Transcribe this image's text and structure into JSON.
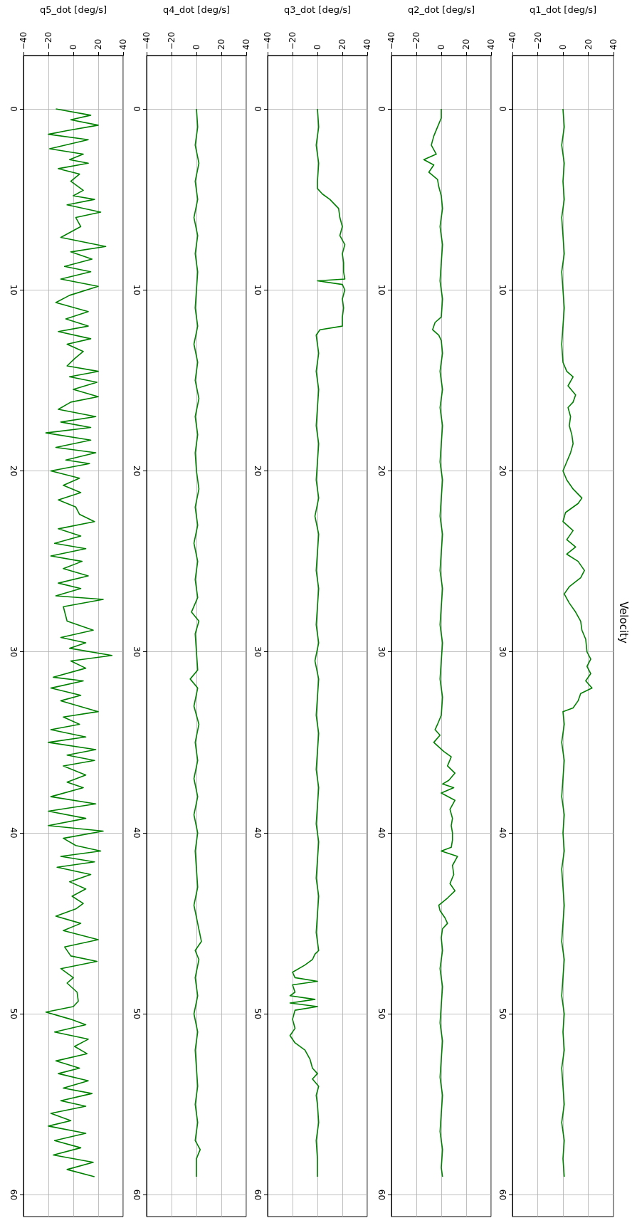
{
  "chart_data": [
    {
      "type": "line",
      "xlabel": "q5_dot [deg/s]",
      "color": "#008000",
      "grid": true,
      "marker": "none",
      "line_style": "solid",
      "xlim": [
        -40,
        40
      ],
      "xticks": [
        -40,
        -20,
        0,
        20,
        40
      ],
      "ylim": [
        61.2,
        -2.95
      ],
      "yticks": [
        0,
        10,
        20,
        30,
        40,
        50,
        60
      ],
      "x": [
        -14,
        14,
        -2,
        20,
        -5,
        -20,
        12,
        -19,
        8,
        -3,
        12,
        -12,
        5,
        -2,
        8,
        0,
        17,
        -5,
        22,
        2,
        6,
        -10,
        26,
        -2,
        15,
        -7,
        14,
        -10,
        20,
        -3,
        -14,
        12,
        -6,
        12,
        -12,
        14,
        -5,
        8,
        1,
        -5,
        20,
        -3,
        19,
        0,
        20,
        -2,
        -12,
        18,
        -10,
        14,
        -22,
        14,
        -14,
        18,
        -6,
        13,
        -18,
        5,
        -8,
        6,
        -12,
        2,
        5,
        17,
        -12,
        6,
        -15,
        10,
        -18,
        7,
        -8,
        12,
        -12,
        6,
        -14,
        24,
        -8,
        -5,
        16,
        -10,
        10,
        -3,
        31,
        -2,
        10,
        -16,
        8,
        -18,
        6,
        -10,
        20,
        -8,
        5,
        -18,
        10,
        -20,
        18,
        -5,
        17,
        -8,
        10,
        -5,
        8,
        -18,
        18,
        -20,
        10,
        -20,
        24,
        -8,
        2,
        22,
        -10,
        17,
        -13,
        14,
        -3,
        10,
        -1,
        8,
        2,
        -14,
        6,
        -8,
        20,
        -7,
        -2,
        19,
        -10,
        0,
        -5,
        3,
        4,
        0,
        -22,
        -2,
        10,
        -15,
        12,
        1,
        11,
        -14,
        5,
        -12,
        12,
        -8,
        15,
        -10,
        10,
        -18,
        -2,
        -20,
        10,
        -15,
        6,
        -16,
        16,
        -5,
        17
      ],
      "values": [
        0,
        0.35,
        0.6,
        0.9,
        1.2,
        1.4,
        1.7,
        2.2,
        2.5,
        2.8,
        3,
        3.3,
        3.6,
        4,
        4.5,
        4.8,
        5,
        5.3,
        5.7,
        6,
        6.5,
        7.1,
        7.6,
        7.9,
        8.3,
        8.7,
        9,
        9.4,
        9.8,
        10.3,
        10.7,
        11.2,
        11.6,
        12,
        12.3,
        12.7,
        13,
        13.4,
        13.8,
        14.2,
        14.5,
        14.8,
        15.1,
        15.5,
        15.9,
        16.2,
        16.6,
        17,
        17.3,
        17.6,
        17.9,
        18.3,
        18.7,
        19,
        19.4,
        19.6,
        20,
        20.4,
        20.8,
        21.2,
        21.6,
        22,
        22.4,
        22.8,
        23.2,
        23.6,
        24,
        24.3,
        24.7,
        25,
        25.4,
        25.8,
        26.2,
        26.5,
        26.9,
        27.1,
        27.5,
        28.3,
        28.8,
        29.2,
        29.5,
        29.8,
        30.2,
        30.5,
        30.9,
        31.4,
        31.6,
        32,
        32.4,
        32.7,
        33.3,
        33.6,
        34,
        34.3,
        34.7,
        35,
        35.4,
        35.7,
        36,
        36.3,
        36.8,
        37.2,
        37.5,
        38,
        38.4,
        38.8,
        39.2,
        39.6,
        39.9,
        40.3,
        40.7,
        41,
        41.3,
        41.6,
        41.9,
        42.3,
        42.7,
        43.1,
        43.5,
        43.9,
        44.2,
        44.6,
        45,
        45.4,
        45.9,
        46.3,
        46.8,
        47.1,
        47.5,
        48,
        48.3,
        48.8,
        49.3,
        49.6,
        49.9,
        50.3,
        50.6,
        51,
        51.4,
        51.8,
        52.2,
        52.6,
        53,
        53.3,
        53.7,
        54.1,
        54.4,
        54.8,
        55.1,
        55.5,
        55.9,
        56.2,
        56.6,
        57,
        57.4,
        57.8,
        58.2,
        58.6,
        59
      ]
    },
    {
      "type": "line",
      "xlabel": "q4_dot [deg/s]",
      "color": "#008000",
      "grid": true,
      "marker": "none",
      "line_style": "solid",
      "xlim": [
        -40,
        40
      ],
      "xticks": [
        -40,
        -20,
        0,
        20,
        40
      ],
      "ylim": [
        61.2,
        -2.95
      ],
      "yticks": [
        0,
        10,
        20,
        30,
        40,
        50,
        60
      ],
      "x": [
        0,
        1,
        -1,
        2,
        -1,
        1,
        -2,
        1,
        -1,
        1,
        0,
        -1,
        1,
        -2,
        1,
        -1,
        2,
        -1,
        1,
        -1,
        0,
        2,
        -1,
        1,
        -2,
        1,
        -1,
        1,
        -4,
        2,
        -1,
        0,
        1,
        -5,
        1,
        -2,
        2,
        -1,
        1,
        -2,
        1,
        -2,
        1,
        -1,
        0,
        1,
        -2,
        1,
        4,
        -1,
        2,
        -1,
        1,
        -2,
        1,
        -1,
        0,
        1,
        -1,
        1,
        -1,
        3,
        0,
        0
      ],
      "values": [
        0,
        1,
        2,
        3,
        4,
        5,
        6,
        7,
        8,
        9,
        10,
        11,
        12,
        13,
        14,
        15,
        16,
        17,
        18,
        19,
        20,
        21,
        22,
        23,
        24,
        25,
        26,
        27,
        27.8,
        28.3,
        29,
        30,
        31,
        31.5,
        32,
        33,
        34,
        35,
        36,
        37,
        38,
        39,
        40,
        41,
        42,
        43,
        44,
        45,
        46,
        46.5,
        47,
        48,
        49,
        50,
        51,
        52,
        53,
        54,
        55,
        56,
        57,
        57.5,
        58,
        59
      ]
    },
    {
      "type": "line",
      "xlabel": "q3_dot [deg/s]",
      "color": "#008000",
      "grid": true,
      "marker": "none",
      "line_style": "solid",
      "xlim": [
        -40,
        40
      ],
      "xticks": [
        -40,
        -20,
        0,
        20,
        40
      ],
      "ylim": [
        61.2,
        -2.95
      ],
      "yticks": [
        0,
        10,
        20,
        30,
        40,
        50,
        60
      ],
      "x": [
        0,
        1,
        -1,
        1,
        0,
        0,
        4,
        10,
        17,
        18,
        20,
        18,
        22,
        20,
        21,
        21,
        22,
        0,
        20,
        22,
        20,
        21,
        20,
        20,
        2,
        -1,
        1,
        -1,
        1,
        0,
        -1,
        1,
        0,
        -1,
        1,
        -2,
        1,
        0,
        -1,
        1,
        0,
        -1,
        1,
        -2,
        1,
        0,
        -1,
        1,
        0,
        -1,
        1,
        0,
        -1,
        1,
        0,
        -1,
        1,
        0,
        -1,
        1,
        -2,
        -4,
        -10,
        -20,
        -18,
        0,
        -20,
        -18,
        -22,
        -2,
        -22,
        0,
        -18,
        -20,
        -18,
        -22,
        -18,
        -10,
        -6,
        -4,
        0,
        -4,
        1,
        -1,
        0,
        1,
        -1,
        0,
        0
      ],
      "values": [
        0,
        1,
        2,
        3,
        4,
        4.4,
        4.7,
        5,
        5.5,
        6,
        6.5,
        7,
        7.5,
        8,
        8.5,
        9,
        9.4,
        9.5,
        9.7,
        10,
        10.5,
        11,
        11.5,
        12,
        12.2,
        12.5,
        13.5,
        14.5,
        15.5,
        16.5,
        17.5,
        18.5,
        19.5,
        20.5,
        21.5,
        22.5,
        23.5,
        24.5,
        25.5,
        26.5,
        27.5,
        28.5,
        29.5,
        30.5,
        31.5,
        32.5,
        33.5,
        34.5,
        35.5,
        36.5,
        37.5,
        38.5,
        39.5,
        40.5,
        41.5,
        42.5,
        43.5,
        44.5,
        45.5,
        46.5,
        46.7,
        47,
        47.3,
        47.7,
        48,
        48.2,
        48.4,
        48.8,
        49,
        49.2,
        49.4,
        49.6,
        49.8,
        50.3,
        50.8,
        51.2,
        51.6,
        52,
        52.5,
        53,
        53.3,
        53.6,
        54,
        54.5,
        55,
        56,
        57,
        58,
        59
      ]
    },
    {
      "type": "line",
      "xlabel": "q2_dot [deg/s]",
      "color": "#008000",
      "grid": true,
      "marker": "none",
      "line_style": "solid",
      "xlim": [
        -40,
        40
      ],
      "xticks": [
        -40,
        -20,
        0,
        20,
        40
      ],
      "ylim": [
        61.2,
        -2.95
      ],
      "yticks": [
        0,
        10,
        20,
        30,
        40,
        50,
        60
      ],
      "x": [
        0,
        0,
        -3,
        -6,
        -8,
        -4,
        -14,
        -6,
        -10,
        -3,
        -2,
        0,
        1,
        -1,
        1,
        0,
        -1,
        1,
        0,
        -5,
        -7,
        -2,
        0,
        1,
        -1,
        1,
        -1,
        1,
        0,
        -1,
        1,
        0,
        -1,
        1,
        0,
        -1,
        1,
        0,
        -1,
        1,
        0,
        -1,
        1,
        0,
        -3,
        -5,
        -1,
        -6,
        2,
        8,
        5,
        11,
        6,
        1,
        10,
        0,
        11,
        7,
        9,
        8,
        9,
        9,
        8,
        0,
        13,
        9,
        10,
        7,
        11,
        5,
        -2,
        -1,
        3,
        5,
        1,
        0,
        1,
        -1,
        1,
        0,
        -1,
        1,
        0,
        -1,
        1,
        0,
        -1,
        1,
        0,
        1
      ],
      "values": [
        0,
        0.5,
        1,
        1.5,
        2,
        2.5,
        2.8,
        3.1,
        3.5,
        3.9,
        4.3,
        4.8,
        5.5,
        6.5,
        7.5,
        8.5,
        9.5,
        10.5,
        11.5,
        11.8,
        12.2,
        12.5,
        12.8,
        13.5,
        14.5,
        15.5,
        16.5,
        17.5,
        18.5,
        19.5,
        20.5,
        21.5,
        22.5,
        23.5,
        24.5,
        25.5,
        26.5,
        27.5,
        28.5,
        29.5,
        30.5,
        31.5,
        32.5,
        33.5,
        34,
        34.3,
        34.6,
        35,
        35.5,
        35.8,
        36.3,
        36.7,
        37.1,
        37.3,
        37.5,
        37.8,
        38.2,
        38.7,
        39.2,
        39.6,
        40,
        40.4,
        40.8,
        41,
        41.3,
        41.8,
        42.3,
        42.8,
        43.2,
        43.6,
        44,
        44.3,
        44.7,
        45,
        45.3,
        45.8,
        46.5,
        47.5,
        48.5,
        49.5,
        50.5,
        51.5,
        52.5,
        53.5,
        54.5,
        55.5,
        56.5,
        57.5,
        58.5,
        59
      ]
    },
    {
      "type": "line",
      "title": "Velocity",
      "xlabel": "q1_dot [deg/s]",
      "color": "#008000",
      "grid": true,
      "marker": "none",
      "line_style": "solid",
      "xlim": [
        -40,
        40
      ],
      "xticks": [
        -40,
        -20,
        0,
        20,
        40
      ],
      "ylim": [
        61.2,
        -2.95
      ],
      "yticks": [
        0,
        10,
        20,
        30,
        40,
        50,
        60
      ],
      "x": [
        0,
        1,
        -1,
        1,
        0,
        1,
        -1,
        0,
        1,
        -1,
        0,
        1,
        0,
        -1,
        0,
        3,
        8,
        4,
        10,
        8,
        4,
        6,
        5,
        7,
        8,
        6,
        3,
        0,
        3,
        8,
        15,
        12,
        2,
        0,
        8,
        3,
        10,
        3,
        12,
        17,
        14,
        5,
        1,
        5,
        10,
        14,
        15,
        18,
        19,
        22,
        19,
        22,
        18,
        23,
        14,
        12,
        8,
        0,
        1,
        -1,
        1,
        0,
        -1,
        1,
        0,
        1,
        -1,
        0,
        1,
        0,
        -1,
        1,
        0,
        -1,
        1,
        0,
        1,
        -1,
        0,
        1,
        -1,
        1,
        0,
        1
      ],
      "values": [
        0,
        1,
        2,
        3,
        4,
        5,
        6,
        7,
        8,
        9,
        10,
        11,
        12,
        13,
        14,
        14.5,
        14.8,
        15.3,
        15.8,
        16.2,
        16.5,
        17,
        17.5,
        18,
        18.5,
        19,
        19.5,
        20,
        20.5,
        21,
        21.5,
        21.8,
        22.3,
        22.8,
        23.3,
        23.8,
        24.2,
        24.6,
        25,
        25.5,
        25.9,
        26.4,
        26.8,
        27.3,
        27.8,
        28.3,
        28.8,
        29.3,
        30,
        30.4,
        30.8,
        31.2,
        31.6,
        32,
        32.3,
        32.7,
        33.1,
        33.3,
        34,
        35,
        36,
        37,
        38,
        39,
        40,
        41,
        42,
        43,
        44,
        45,
        46,
        47,
        48,
        49,
        50,
        51,
        52,
        53,
        54,
        55,
        56,
        57,
        58,
        59
      ]
    }
  ]
}
